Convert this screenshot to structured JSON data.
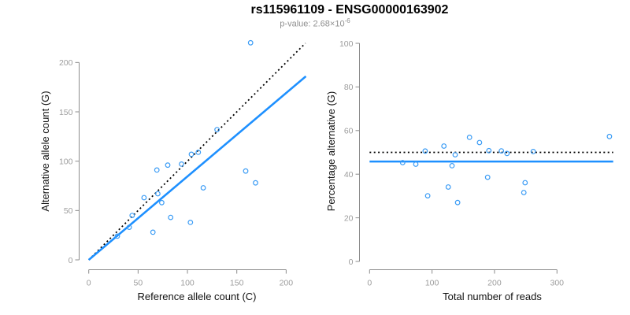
{
  "header": {
    "title": "rs115961109 - ENSG00000163902",
    "p_label_base": "p-value: 2.68×10",
    "p_exponent": "-6"
  },
  "colors": {
    "point_blue": "#3B9CF5",
    "line_blue": "#1E90FF",
    "dotted_black": "#000000",
    "axis_gray": "#8c8c8c",
    "tick_label_gray": "#9c9c9c"
  },
  "chart_data": [
    {
      "type": "scatter",
      "name": "counts-scatter",
      "title": "rs115961109 - ENSG00000163902",
      "subtitle": "p-value: 2.68×10^-6",
      "xlabel": "Reference allele count (C)",
      "ylabel": "Alternative allele count (G)",
      "xticks": [
        0,
        50,
        100,
        150,
        200
      ],
      "yticks": [
        0,
        50,
        100,
        150,
        200
      ],
      "xlim": [
        0,
        220
      ],
      "ylim": [
        0,
        222
      ],
      "grid": false,
      "legend": "none",
      "points": [
        [
          29,
          24
        ],
        [
          41,
          33
        ],
        [
          44,
          45
        ],
        [
          65,
          28
        ],
        [
          56,
          63
        ],
        [
          83,
          43
        ],
        [
          74,
          58
        ],
        [
          70,
          67
        ],
        [
          103,
          38
        ],
        [
          69,
          91
        ],
        [
          80,
          96
        ],
        [
          116,
          73
        ],
        [
          94,
          97
        ],
        [
          104,
          107
        ],
        [
          111,
          109
        ],
        [
          169,
          78
        ],
        [
          159,
          90
        ],
        [
          130,
          132
        ],
        [
          164,
          220
        ]
      ],
      "lines": [
        {
          "name": "identity-line",
          "x1": 0,
          "y1": 0,
          "x2": 219.5,
          "y2": 219.5,
          "dotted": true,
          "color": "#000000",
          "width": 1.8
        },
        {
          "name": "fit-line",
          "x1": 0,
          "y1": 0,
          "x2": 220,
          "y2": 186,
          "dotted": false,
          "color": "#1E90FF",
          "width": 2.6,
          "slope": 0.845
        }
      ]
    },
    {
      "type": "scatter",
      "name": "percentage-scatter",
      "xlabel": "Total number of reads",
      "ylabel": "Percentage alternative (G)",
      "xticks": [
        0,
        100,
        200,
        300
      ],
      "yticks": [
        0,
        20,
        40,
        60,
        80,
        100
      ],
      "xlim": [
        0,
        390
      ],
      "ylim": [
        0,
        100
      ],
      "grid": false,
      "legend": "none",
      "points": [
        [
          53,
          45.3
        ],
        [
          74,
          44.6
        ],
        [
          89,
          50.6
        ],
        [
          93,
          30.1
        ],
        [
          119,
          52.9
        ],
        [
          126,
          34.1
        ],
        [
          132,
          43.9
        ],
        [
          137,
          48.9
        ],
        [
          141,
          27.0
        ],
        [
          160,
          56.9
        ],
        [
          176,
          54.5
        ],
        [
          189,
          38.6
        ],
        [
          191,
          50.8
        ],
        [
          211,
          50.7
        ],
        [
          220,
          49.5
        ],
        [
          247,
          31.6
        ],
        [
          249,
          36.1
        ],
        [
          262,
          50.4
        ],
        [
          384,
          57.3
        ]
      ],
      "lines": [
        {
          "name": "null-line-50pct",
          "x1": 0,
          "y1": 50,
          "x2": 390,
          "y2": 50,
          "dotted": true,
          "color": "#000000",
          "width": 1.8
        },
        {
          "name": "fit-line",
          "x1": 0,
          "y1": 45.8,
          "x2": 390,
          "y2": 45.8,
          "dotted": false,
          "color": "#1E90FF",
          "width": 2.6
        }
      ]
    }
  ]
}
